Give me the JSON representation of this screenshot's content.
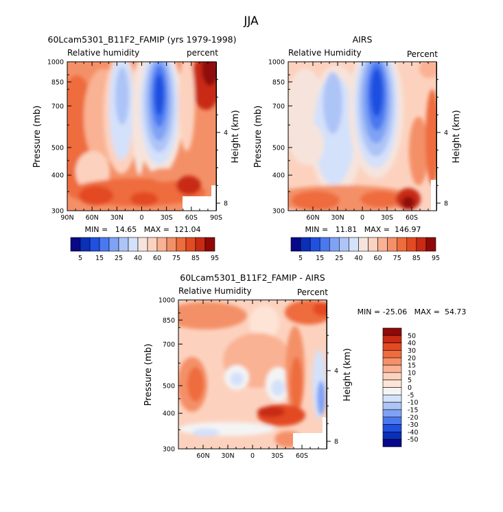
{
  "figure_title": "JJA",
  "colors": {
    "rh": [
      "#08088a",
      "#0a2fb8",
      "#1f50e0",
      "#4a78f0",
      "#7fa2f5",
      "#adc4f7",
      "#d4e1fa",
      "#f6e4dc",
      "#fcd2bf",
      "#f9b293",
      "#f49067",
      "#ee6c3d",
      "#e34a22",
      "#c82a14",
      "#8f0909"
    ],
    "diff": [
      "#08088a",
      "#0a2fb8",
      "#1f50e0",
      "#4a78f0",
      "#7fa2f5",
      "#adc4f7",
      "#d4e1fa",
      "#f4f4f4",
      "#fde4d6",
      "#fcd2bf",
      "#f9b293",
      "#f49067",
      "#ee6c3d",
      "#e34a22",
      "#c82a14",
      "#8f0909"
    ]
  },
  "panels": [
    {
      "id": "model",
      "title": "60Lcam5301_B11F2_FAMIP (yrs 1979-1998)",
      "left_label": "Relative humidity",
      "right_label": "percent",
      "ylabel": "Pressure (mb)",
      "y2label": "Height (km)",
      "minmax": "MIN =   14.65   MAX =  121.04"
    },
    {
      "id": "airs",
      "title": "AIRS",
      "left_label": "Relative Humidity",
      "right_label": "Percent",
      "ylabel": "Pressure (mb)",
      "y2label": "Height (km)",
      "minmax": "MIN =   11.81   MAX =  146.97"
    },
    {
      "id": "diff",
      "title": "60Lcam5301_B11F2_FAMIP - AIRS",
      "left_label": "Relative Humidity",
      "right_label": "Percent",
      "ylabel": "Pressure (mb)",
      "y2label": "Height (km)",
      "minmax": "MIN = -25.06   MAX =  54.73"
    }
  ],
  "rh_colorbar_labels": [
    "5",
    "15",
    "25",
    "40",
    "60",
    "75",
    "85",
    "95"
  ],
  "diff_colorbar_labels": [
    "50",
    "40",
    "30",
    "20",
    "15",
    "10",
    "5",
    "0",
    "-5",
    "-10",
    "-15",
    "-20",
    "-30",
    "-40",
    "-50"
  ],
  "chart_data": [
    {
      "type": "heatmap",
      "title": "60Lcam5301_B11F2_FAMIP (yrs 1979-1998)",
      "xlabel": "",
      "ylabel": "Pressure (mb)",
      "y2label": "Height (km)",
      "x_ticks": [
        "90N",
        "60N",
        "30N",
        "0",
        "30S",
        "60S",
        "90S"
      ],
      "y_ticks": [
        "300",
        "400",
        "500",
        "700",
        "850",
        "1000"
      ],
      "y2_ticks": [
        "8",
        "4"
      ],
      "ylim": [
        1000,
        300
      ],
      "colorbar_levels": [
        5,
        15,
        25,
        40,
        60,
        75,
        85,
        95
      ],
      "min": 14.65,
      "max": 121.04
    },
    {
      "type": "heatmap",
      "title": "AIRS",
      "xlabel": "",
      "ylabel": "Pressure (mb)",
      "y2label": "Height (km)",
      "x_ticks": [
        "60N",
        "30N",
        "0",
        "30S",
        "60S"
      ],
      "y_ticks": [
        "300",
        "400",
        "500",
        "700",
        "850",
        "1000"
      ],
      "y2_ticks": [
        "8",
        "4"
      ],
      "ylim": [
        1000,
        300
      ],
      "colorbar_levels": [
        5,
        15,
        25,
        40,
        60,
        75,
        85,
        95
      ],
      "min": 11.81,
      "max": 146.97
    },
    {
      "type": "heatmap",
      "title": "60Lcam5301_B11F2_FAMIP - AIRS",
      "xlabel": "",
      "ylabel": "Pressure (mb)",
      "y2label": "Height (km)",
      "x_ticks": [
        "60N",
        "30N",
        "0",
        "30S",
        "60S"
      ],
      "y_ticks": [
        "300",
        "400",
        "500",
        "700",
        "850",
        "1000"
      ],
      "y2_ticks": [
        "8",
        "4"
      ],
      "ylim": [
        1000,
        300
      ],
      "colorbar_levels": [
        -50,
        -40,
        -30,
        -20,
        -15,
        -10,
        -5,
        0,
        5,
        10,
        15,
        20,
        30,
        40,
        50
      ],
      "min": -25.06,
      "max": 54.73
    }
  ]
}
